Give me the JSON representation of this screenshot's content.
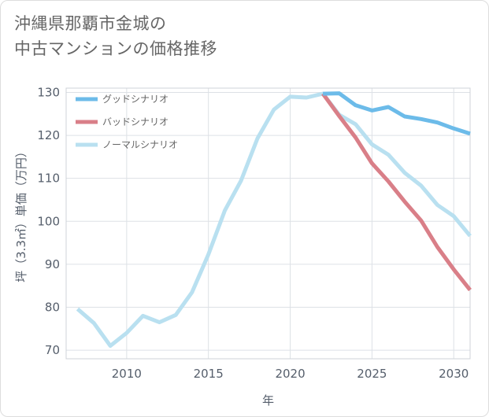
{
  "title": "沖縄県那覇市金城の\n中古マンションの価格推移",
  "chart_data": {
    "type": "line",
    "xlabel": "年",
    "ylabel": "坪（3.3㎡）単価（万円）",
    "xlim": [
      2006.3,
      2031
    ],
    "ylim": [
      68,
      131
    ],
    "xticks": [
      2010,
      2015,
      2020,
      2025,
      2030
    ],
    "yticks": [
      70,
      80,
      90,
      100,
      110,
      120,
      130
    ],
    "grid": true,
    "legend_position": "top-left",
    "series": [
      {
        "name": "グッドシナリオ",
        "color": "#6cbbe9",
        "x": [
          2022,
          2023,
          2024,
          2025,
          2026,
          2027,
          2028,
          2029,
          2030,
          2031
        ],
        "y": [
          129.7,
          129.8,
          127.0,
          125.8,
          126.6,
          124.4,
          123.8,
          123.0,
          121.6,
          120.4
        ]
      },
      {
        "name": "バッドシナリオ",
        "color": "#d97f88",
        "x": [
          2022,
          2023,
          2024,
          2025,
          2026,
          2027,
          2028,
          2029,
          2030,
          2031
        ],
        "y": [
          129.7,
          124.5,
          119.5,
          113.5,
          109.3,
          104.6,
          100.2,
          94.0,
          88.8,
          84.0
        ]
      },
      {
        "name": "ノーマルシナリオ",
        "color": "#b9e0f0",
        "x": [
          2007,
          2008,
          2009,
          2010,
          2011,
          2012,
          2013,
          2014,
          2015,
          2016,
          2017,
          2018,
          2019,
          2020,
          2021,
          2022,
          2023,
          2024,
          2025,
          2026,
          2027,
          2028,
          2029,
          2030,
          2031
        ],
        "y": [
          79.6,
          76.3,
          71.0,
          74.0,
          78.0,
          76.5,
          78.2,
          83.5,
          92.3,
          102.5,
          109.5,
          119.3,
          126.0,
          129.0,
          128.8,
          129.7,
          124.8,
          122.6,
          117.9,
          115.5,
          111.3,
          108.3,
          103.8,
          101.2,
          96.6
        ]
      }
    ]
  }
}
